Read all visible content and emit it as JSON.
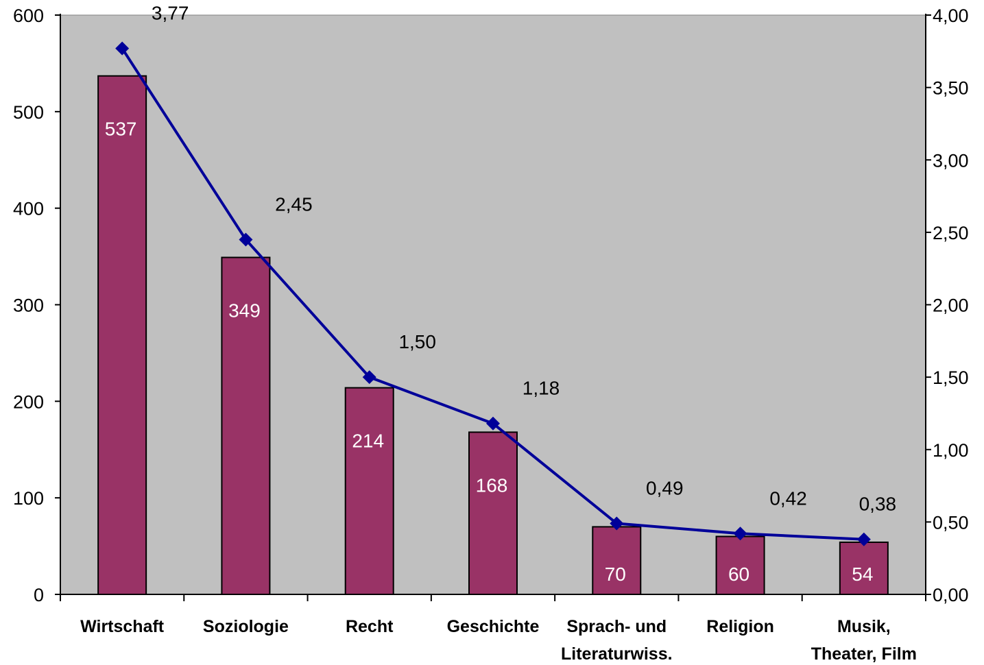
{
  "chart_data": {
    "type": "bar",
    "title": "",
    "categories": [
      [
        "Wirtschaft"
      ],
      [
        "Soziologie"
      ],
      [
        "Recht"
      ],
      [
        "Geschichte"
      ],
      [
        "Sprach- und",
        "Literaturwiss."
      ],
      [
        "Religion"
      ],
      [
        "Musik,",
        "Theater, Film"
      ]
    ],
    "bar_series": {
      "values": [
        537,
        349,
        214,
        168,
        70,
        60,
        54
      ],
      "labels": [
        "537",
        "349",
        "214",
        "168",
        "70",
        "60",
        "54"
      ],
      "color": "#993366"
    },
    "line_series": {
      "values": [
        3.77,
        2.45,
        1.5,
        1.18,
        0.49,
        0.42,
        0.38
      ],
      "labels": [
        "3,77",
        "2,45",
        "1,50",
        "1,18",
        "0,49",
        "0,42",
        "0,38"
      ],
      "color": "#000099",
      "marker": "diamond"
    },
    "y_left": {
      "min": 0,
      "max": 600,
      "ticks": [
        0,
        100,
        200,
        300,
        400,
        500,
        600
      ],
      "tick_labels": [
        "0",
        "100",
        "200",
        "300",
        "400",
        "500",
        "600"
      ]
    },
    "y_right": {
      "min": 0,
      "max": 4,
      "ticks": [
        0,
        0.5,
        1,
        1.5,
        2,
        2.5,
        3,
        3.5,
        4
      ],
      "tick_labels": [
        "0,00",
        "0,50",
        "1,00",
        "1,50",
        "2,00",
        "2,50",
        "3,00",
        "3,50",
        "4,00"
      ]
    },
    "plot_background": "#c0c0c0",
    "grid": false,
    "legend": "none"
  }
}
